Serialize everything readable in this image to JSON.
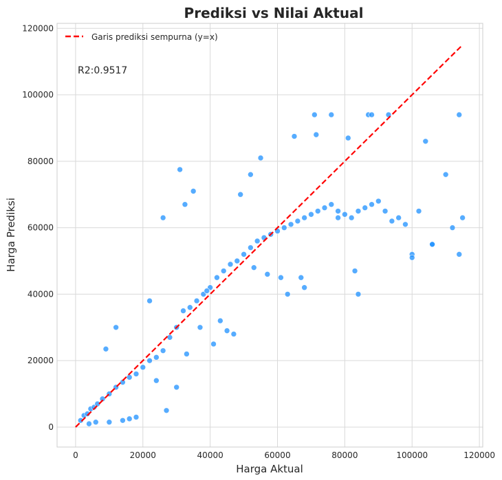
{
  "chart_data": {
    "type": "scatter",
    "title": "Prediksi vs Nilai Aktual",
    "xlabel": "Harga Aktual",
    "ylabel": "Harga Prediksi",
    "xlim": [
      -5500,
      121000
    ],
    "ylim": [
      -6000,
      121500
    ],
    "xticks": [
      0,
      20000,
      40000,
      60000,
      80000,
      100000,
      120000
    ],
    "yticks": [
      0,
      20000,
      40000,
      60000,
      80000,
      100000,
      120000
    ],
    "xtick_labels": [
      "0",
      "20000",
      "40000",
      "60000",
      "80000",
      "100000",
      "120000"
    ],
    "ytick_labels": [
      "0",
      "20000",
      "40000",
      "60000",
      "80000",
      "100000",
      "120000"
    ],
    "grid": true,
    "legend_position": "top-left",
    "annotation": "R2:0.9517",
    "colors": {
      "points": "#1e90ff",
      "reference_line": "#ff0000",
      "grid": "#d9d9d9"
    },
    "series": [
      {
        "name": "Garis prediksi sempurna (y=x)",
        "kind": "line",
        "style": "dashed",
        "x": [
          0,
          115000
        ],
        "y": [
          0,
          115000
        ]
      },
      {
        "kind": "scatter",
        "x": [
          1500,
          2500,
          3500,
          4500,
          5500,
          6500,
          8000,
          10000,
          12000,
          14000,
          16000,
          18000,
          20000,
          22000,
          24000,
          26000,
          28000,
          30000,
          32000,
          34000,
          36000,
          38000,
          40000,
          42000,
          44000,
          46000,
          48000,
          50000,
          52000,
          54000,
          56000,
          58000,
          60000,
          62000,
          64000,
          66000,
          68000,
          70000,
          72000,
          74000,
          76000,
          78000,
          80000,
          82000,
          84000,
          86000,
          88000,
          90000,
          92000,
          94000,
          96000,
          98000,
          100000,
          102000,
          104000,
          106000,
          110000,
          112000,
          114000,
          115000,
          12000,
          9000,
          22000,
          26000,
          31000,
          32500,
          35000,
          37000,
          39000,
          43000,
          45000,
          47000,
          52000,
          55000,
          57000,
          63000,
          65000,
          67000,
          71000,
          71500,
          76000,
          78000,
          83000,
          87000,
          88000,
          93000,
          100000,
          106000,
          114000,
          81000,
          84000,
          68000,
          61000,
          53000,
          49000,
          41000,
          33000,
          30000,
          27000,
          24000,
          18000,
          16000,
          14000,
          10000,
          6000,
          4000
        ],
        "y": [
          2000,
          3500,
          4000,
          5500,
          6000,
          7000,
          8500,
          10000,
          12000,
          13500,
          15000,
          16000,
          18000,
          20000,
          21000,
          23000,
          27000,
          30000,
          35000,
          36000,
          38000,
          40000,
          42000,
          45000,
          47000,
          49000,
          50000,
          52000,
          54000,
          56000,
          57000,
          58000,
          59000,
          60000,
          61000,
          62000,
          63000,
          64000,
          65000,
          66000,
          67000,
          65000,
          64000,
          63000,
          65000,
          66000,
          67000,
          68000,
          65000,
          62000,
          63000,
          61000,
          52000,
          65000,
          86000,
          55000,
          76000,
          60000,
          52000,
          63000,
          30000,
          23500,
          38000,
          63000,
          77500,
          67000,
          71000,
          30000,
          41000,
          32000,
          29000,
          28000,
          76000,
          81000,
          46000,
          40000,
          87500,
          45000,
          94000,
          88000,
          94000,
          63000,
          47000,
          94000,
          94000,
          94000,
          51000,
          55000,
          94000,
          87000,
          40000,
          42000,
          45000,
          48000,
          70000,
          25000,
          22000,
          12000,
          5000,
          14000,
          3000,
          2500,
          2000,
          1500,
          1500,
          1000
        ]
      }
    ]
  }
}
